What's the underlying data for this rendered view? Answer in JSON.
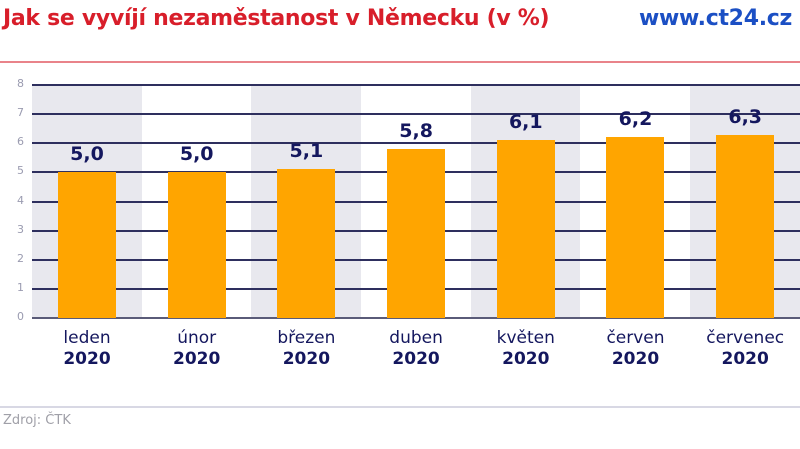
{
  "header": {
    "title": "Jak se vyvíjí nezaměstanost v Německu (v %)",
    "brand": "www.ct24.cz"
  },
  "footer": {
    "source": "Zdroj: ČTK"
  },
  "colors": {
    "title": "#d81e2a",
    "brand": "#1b4fc4",
    "bar": "#ffa500",
    "band": "#e8e8ee",
    "text": "#14175e"
  },
  "chart_data": {
    "type": "bar",
    "title": "Jak se vyvíjí nezaměstanost v Německu (v %)",
    "xlabel": "",
    "ylabel": "",
    "ylim": [
      0,
      8
    ],
    "yticks": [
      "0",
      "1",
      "2",
      "3",
      "4",
      "5",
      "6",
      "7",
      "8"
    ],
    "grid": true,
    "legend": "none",
    "categories": [
      {
        "month": "leden",
        "year": "2020"
      },
      {
        "month": "únor",
        "year": "2020"
      },
      {
        "month": "březen",
        "year": "2020"
      },
      {
        "month": "duben",
        "year": "2020"
      },
      {
        "month": "květen",
        "year": "2020"
      },
      {
        "month": "červen",
        "year": "2020"
      },
      {
        "month": "červenec",
        "year": "2020"
      }
    ],
    "values": [
      5.0,
      5.0,
      5.1,
      5.8,
      6.1,
      6.2,
      6.3
    ],
    "value_labels": [
      "5,0",
      "5,0",
      "5,1",
      "5,8",
      "6,1",
      "6,2",
      "6,3"
    ]
  }
}
